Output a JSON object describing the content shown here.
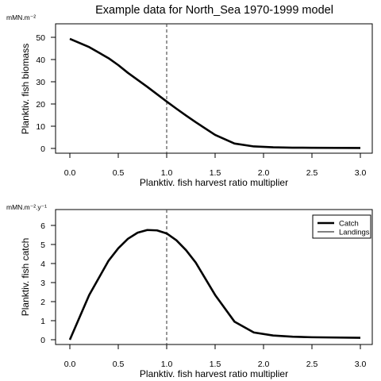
{
  "title": "Example data for  North_Sea   1970-1999  model",
  "chart_data": [
    {
      "type": "line",
      "xlabel": "Planktiv. fish harvest ratio multiplier",
      "ylabel": "Planktiv. fish biomass",
      "units": "mMN.m⁻²",
      "xlim": [
        0,
        3.0
      ],
      "ylim": [
        0,
        50
      ],
      "xticks": [
        "0.0",
        "0.5",
        "1.0",
        "1.5",
        "2.0",
        "2.5",
        "3.0"
      ],
      "yticks": [
        "0",
        "10",
        "20",
        "30",
        "40",
        "50"
      ],
      "reference_x": 1.0,
      "x": [
        0.0,
        0.2,
        0.4,
        0.5,
        0.6,
        0.8,
        1.0,
        1.1,
        1.2,
        1.3,
        1.5,
        1.7,
        1.9,
        2.1,
        2.3,
        2.5,
        3.0
      ],
      "series": [
        {
          "name": "Catch",
          "style": "solid-thick",
          "values": [
            49.3,
            45.6,
            40.6,
            37.5,
            34.0,
            27.7,
            21.1,
            17.9,
            14.8,
            11.8,
            6.1,
            2.2,
            0.9,
            0.5,
            0.35,
            0.3,
            0.2
          ]
        }
      ]
    },
    {
      "type": "line",
      "xlabel": "Planktiv. fish harvest ratio multiplier",
      "ylabel": "Planktiv. fish catch",
      "units": "mMN.m⁻².y⁻¹",
      "xlim": [
        0,
        3.0
      ],
      "ylim": [
        0,
        6
      ],
      "xticks": [
        "0.0",
        "0.5",
        "1.0",
        "1.5",
        "2.0",
        "2.5",
        "3.0"
      ],
      "yticks": [
        "0",
        "1",
        "2",
        "3",
        "4",
        "5",
        "6"
      ],
      "reference_x": 1.0,
      "legend": {
        "position": "top-right",
        "entries": [
          "Catch",
          "Landings"
        ]
      },
      "x": [
        0.0,
        0.2,
        0.4,
        0.5,
        0.6,
        0.7,
        0.8,
        0.9,
        1.0,
        1.1,
        1.2,
        1.3,
        1.5,
        1.7,
        1.9,
        2.1,
        2.3,
        2.5,
        3.0
      ],
      "series": [
        {
          "name": "Catch",
          "style": "solid-thick",
          "values": [
            0.0,
            2.35,
            4.15,
            4.8,
            5.3,
            5.62,
            5.76,
            5.74,
            5.58,
            5.22,
            4.7,
            4.05,
            2.35,
            0.95,
            0.38,
            0.22,
            0.16,
            0.13,
            0.1
          ]
        },
        {
          "name": "Landings",
          "style": "solid-thin",
          "values": [
            0.0,
            2.35,
            4.15,
            4.8,
            5.3,
            5.62,
            5.76,
            5.74,
            5.58,
            5.22,
            4.7,
            4.05,
            2.35,
            0.95,
            0.38,
            0.22,
            0.16,
            0.13,
            0.1
          ]
        }
      ]
    }
  ]
}
